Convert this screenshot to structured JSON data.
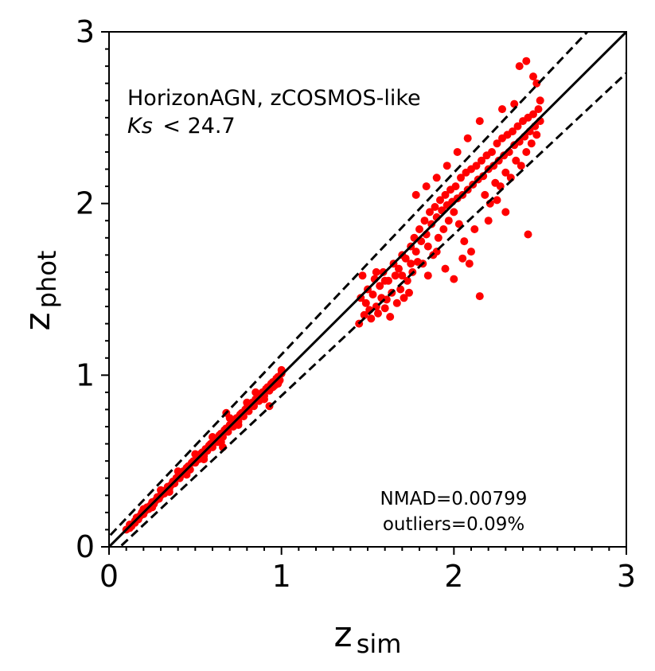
{
  "chart_data": {
    "type": "scatter",
    "title": "",
    "xlabel": "z_sim",
    "xlabel_main": "z",
    "xlabel_sub": "sim",
    "ylabel": "z_phot",
    "ylabel_main": "z",
    "ylabel_sub": "phot",
    "xlim": [
      0,
      3
    ],
    "ylim": [
      0,
      3
    ],
    "xticks": [
      0,
      1,
      2,
      3
    ],
    "yticks": [
      0,
      1,
      2,
      3
    ],
    "xtick_labels": [
      "0",
      "1",
      "2",
      "3"
    ],
    "ytick_labels": [
      "0",
      "1",
      "2",
      "3"
    ],
    "minor_tick_step": 0.1,
    "grid": false,
    "point_color": "#ff0000",
    "line_color": "#000000",
    "annotation_title": "HorizonAGN, zCOSMOS-like",
    "annotation_cut_var": "Ks",
    "annotation_cut_value": "< 24.7",
    "stats_nmad": "NMAD=0.00799",
    "stats_outliers": "outliers=0.09%",
    "reference_lines": [
      {
        "name": "one-to-one",
        "style": "solid",
        "slope": 1.0,
        "intercept": 0.0
      },
      {
        "name": "upper-bound",
        "style": "dashed",
        "slope": 1.06,
        "intercept": 0.06
      },
      {
        "name": "lower-bound",
        "style": "dashed",
        "slope": 0.94,
        "intercept": -0.06
      }
    ],
    "series": [
      {
        "name": "galaxies",
        "points": [
          [
            0.1,
            0.1
          ],
          [
            0.12,
            0.13
          ],
          [
            0.13,
            0.12
          ],
          [
            0.15,
            0.15
          ],
          [
            0.16,
            0.17
          ],
          [
            0.17,
            0.16
          ],
          [
            0.18,
            0.18
          ],
          [
            0.19,
            0.2
          ],
          [
            0.2,
            0.19
          ],
          [
            0.21,
            0.21
          ],
          [
            0.22,
            0.23
          ],
          [
            0.23,
            0.22
          ],
          [
            0.24,
            0.24
          ],
          [
            0.25,
            0.26
          ],
          [
            0.26,
            0.25
          ],
          [
            0.27,
            0.27
          ],
          [
            0.28,
            0.29
          ],
          [
            0.29,
            0.28
          ],
          [
            0.3,
            0.3
          ],
          [
            0.31,
            0.32
          ],
          [
            0.32,
            0.31
          ],
          [
            0.33,
            0.33
          ],
          [
            0.34,
            0.35
          ],
          [
            0.35,
            0.34
          ],
          [
            0.36,
            0.36
          ],
          [
            0.37,
            0.38
          ],
          [
            0.38,
            0.37
          ],
          [
            0.39,
            0.4
          ],
          [
            0.4,
            0.41
          ],
          [
            0.41,
            0.4
          ],
          [
            0.42,
            0.42
          ],
          [
            0.43,
            0.44
          ],
          [
            0.44,
            0.43
          ],
          [
            0.45,
            0.46
          ],
          [
            0.46,
            0.47
          ],
          [
            0.47,
            0.45
          ],
          [
            0.48,
            0.49
          ],
          [
            0.49,
            0.5
          ],
          [
            0.5,
            0.49
          ],
          [
            0.51,
            0.52
          ],
          [
            0.52,
            0.51
          ],
          [
            0.53,
            0.54
          ],
          [
            0.54,
            0.55
          ],
          [
            0.55,
            0.53
          ],
          [
            0.56,
            0.57
          ],
          [
            0.57,
            0.56
          ],
          [
            0.58,
            0.59
          ],
          [
            0.59,
            0.6
          ],
          [
            0.6,
            0.58
          ],
          [
            0.61,
            0.62
          ],
          [
            0.62,
            0.63
          ],
          [
            0.63,
            0.61
          ],
          [
            0.64,
            0.65
          ],
          [
            0.65,
            0.66
          ],
          [
            0.66,
            0.64
          ],
          [
            0.67,
            0.68
          ],
          [
            0.68,
            0.69
          ],
          [
            0.69,
            0.67
          ],
          [
            0.7,
            0.71
          ],
          [
            0.71,
            0.72
          ],
          [
            0.72,
            0.7
          ],
          [
            0.73,
            0.74
          ],
          [
            0.74,
            0.75
          ],
          [
            0.75,
            0.73
          ],
          [
            0.76,
            0.77
          ],
          [
            0.77,
            0.78
          ],
          [
            0.78,
            0.76
          ],
          [
            0.79,
            0.8
          ],
          [
            0.8,
            0.81
          ],
          [
            0.81,
            0.79
          ],
          [
            0.82,
            0.83
          ],
          [
            0.83,
            0.84
          ],
          [
            0.84,
            0.82
          ],
          [
            0.85,
            0.86
          ],
          [
            0.86,
            0.87
          ],
          [
            0.87,
            0.85
          ],
          [
            0.88,
            0.89
          ],
          [
            0.89,
            0.9
          ],
          [
            0.9,
            0.88
          ],
          [
            0.91,
            0.92
          ],
          [
            0.92,
            0.93
          ],
          [
            0.93,
            0.91
          ],
          [
            0.94,
            0.95
          ],
          [
            0.95,
            0.96
          ],
          [
            0.96,
            0.94
          ],
          [
            0.97,
            0.98
          ],
          [
            0.98,
            0.99
          ],
          [
            0.99,
            0.97
          ],
          [
            1.0,
            1.01
          ],
          [
            1.0,
            1.03
          ],
          [
            0.98,
            0.95
          ],
          [
            0.95,
            0.93
          ],
          [
            0.9,
            0.86
          ],
          [
            0.85,
            0.9
          ],
          [
            0.8,
            0.84
          ],
          [
            0.75,
            0.71
          ],
          [
            0.7,
            0.75
          ],
          [
            0.65,
            0.61
          ],
          [
            0.6,
            0.64
          ],
          [
            0.55,
            0.51
          ],
          [
            0.5,
            0.54
          ],
          [
            0.45,
            0.42
          ],
          [
            0.4,
            0.44
          ],
          [
            0.35,
            0.32
          ],
          [
            0.3,
            0.33
          ],
          [
            0.25,
            0.23
          ],
          [
            0.2,
            0.22
          ],
          [
            0.15,
            0.14
          ],
          [
            0.12,
            0.11
          ],
          [
            0.93,
            0.82
          ],
          [
            0.66,
            0.58
          ],
          [
            0.68,
            0.78
          ],
          [
            1.45,
            1.3
          ],
          [
            1.46,
            1.45
          ],
          [
            1.47,
            1.58
          ],
          [
            1.48,
            1.35
          ],
          [
            1.49,
            1.42
          ],
          [
            1.5,
            1.5
          ],
          [
            1.51,
            1.38
          ],
          [
            1.52,
            1.33
          ],
          [
            1.53,
            1.47
          ],
          [
            1.54,
            1.56
          ],
          [
            1.55,
            1.4
          ],
          [
            1.56,
            1.36
          ],
          [
            1.57,
            1.52
          ],
          [
            1.58,
            1.45
          ],
          [
            1.59,
            1.6
          ],
          [
            1.6,
            1.39
          ],
          [
            1.61,
            1.44
          ],
          [
            1.62,
            1.55
          ],
          [
            1.63,
            1.34
          ],
          [
            1.64,
            1.48
          ],
          [
            1.65,
            1.65
          ],
          [
            1.66,
            1.58
          ],
          [
            1.67,
            1.42
          ],
          [
            1.68,
            1.62
          ],
          [
            1.69,
            1.5
          ],
          [
            1.7,
            1.7
          ],
          [
            1.71,
            1.45
          ],
          [
            1.72,
            1.68
          ],
          [
            1.73,
            1.55
          ],
          [
            1.74,
            1.48
          ],
          [
            1.75,
            1.75
          ],
          [
            1.76,
            1.6
          ],
          [
            1.77,
            1.8
          ],
          [
            1.78,
            1.72
          ],
          [
            1.79,
            1.66
          ],
          [
            1.8,
            1.85
          ],
          [
            1.81,
            1.78
          ],
          [
            1.82,
            1.65
          ],
          [
            1.83,
            1.9
          ],
          [
            1.84,
            1.82
          ],
          [
            1.85,
            1.75
          ],
          [
            1.86,
            1.95
          ],
          [
            1.87,
            1.88
          ],
          [
            1.88,
            1.7
          ],
          [
            1.89,
            1.98
          ],
          [
            1.9,
            1.92
          ],
          [
            1.91,
            1.8
          ],
          [
            1.92,
            2.02
          ],
          [
            1.93,
            1.96
          ],
          [
            1.94,
            1.85
          ],
          [
            1.95,
            2.05
          ],
          [
            1.96,
            1.99
          ],
          [
            1.97,
            1.9
          ],
          [
            1.98,
            2.08
          ],
          [
            1.99,
            2.01
          ],
          [
            2.0,
            1.95
          ],
          [
            2.01,
            2.1
          ],
          [
            2.02,
            2.03
          ],
          [
            2.03,
            1.88
          ],
          [
            2.04,
            2.15
          ],
          [
            2.05,
            2.05
          ],
          [
            2.06,
            1.78
          ],
          [
            2.07,
            2.18
          ],
          [
            2.08,
            2.08
          ],
          [
            2.09,
            1.65
          ],
          [
            2.1,
            2.2
          ],
          [
            2.11,
            2.11
          ],
          [
            2.12,
            1.85
          ],
          [
            2.13,
            2.22
          ],
          [
            2.14,
            2.14
          ],
          [
            2.15,
            1.46
          ],
          [
            2.16,
            2.25
          ],
          [
            2.17,
            2.16
          ],
          [
            2.18,
            2.05
          ],
          [
            2.19,
            2.28
          ],
          [
            2.2,
            2.2
          ],
          [
            2.21,
            2.0
          ],
          [
            2.22,
            2.3
          ],
          [
            2.23,
            2.22
          ],
          [
            2.24,
            2.12
          ],
          [
            2.25,
            2.35
          ],
          [
            2.26,
            2.25
          ],
          [
            2.27,
            2.1
          ],
          [
            2.28,
            2.38
          ],
          [
            2.29,
            2.28
          ],
          [
            2.3,
            2.18
          ],
          [
            2.31,
            2.4
          ],
          [
            2.32,
            2.3
          ],
          [
            2.33,
            2.15
          ],
          [
            2.34,
            2.42
          ],
          [
            2.35,
            2.34
          ],
          [
            2.36,
            2.25
          ],
          [
            2.37,
            2.45
          ],
          [
            2.38,
            2.36
          ],
          [
            2.39,
            2.22
          ],
          [
            2.4,
            2.48
          ],
          [
            2.41,
            2.39
          ],
          [
            2.42,
            2.3
          ],
          [
            2.43,
            2.5
          ],
          [
            2.44,
            2.42
          ],
          [
            2.45,
            2.35
          ],
          [
            2.46,
            2.52
          ],
          [
            2.47,
            2.45
          ],
          [
            2.48,
            2.4
          ],
          [
            2.49,
            2.55
          ],
          [
            2.5,
            2.48
          ],
          [
            2.5,
            2.6
          ],
          [
            2.48,
            2.7
          ],
          [
            2.46,
            2.74
          ],
          [
            2.42,
            2.83
          ],
          [
            2.38,
            2.8
          ],
          [
            2.43,
            1.82
          ],
          [
            2.3,
            1.95
          ],
          [
            2.25,
            2.02
          ],
          [
            2.2,
            1.9
          ],
          [
            2.1,
            1.72
          ],
          [
            2.05,
            1.68
          ],
          [
            2.0,
            1.56
          ],
          [
            1.95,
            1.62
          ],
          [
            1.9,
            1.72
          ],
          [
            1.85,
            1.58
          ],
          [
            2.15,
            2.48
          ],
          [
            2.08,
            2.38
          ],
          [
            2.02,
            2.3
          ],
          [
            1.96,
            2.22
          ],
          [
            1.9,
            2.15
          ],
          [
            1.84,
            2.1
          ],
          [
            1.78,
            2.05
          ],
          [
            2.28,
            2.55
          ],
          [
            2.35,
            2.58
          ],
          [
            1.75,
            1.65
          ],
          [
            1.7,
            1.58
          ],
          [
            1.6,
            1.55
          ],
          [
            1.55,
            1.6
          ]
        ]
      }
    ]
  }
}
